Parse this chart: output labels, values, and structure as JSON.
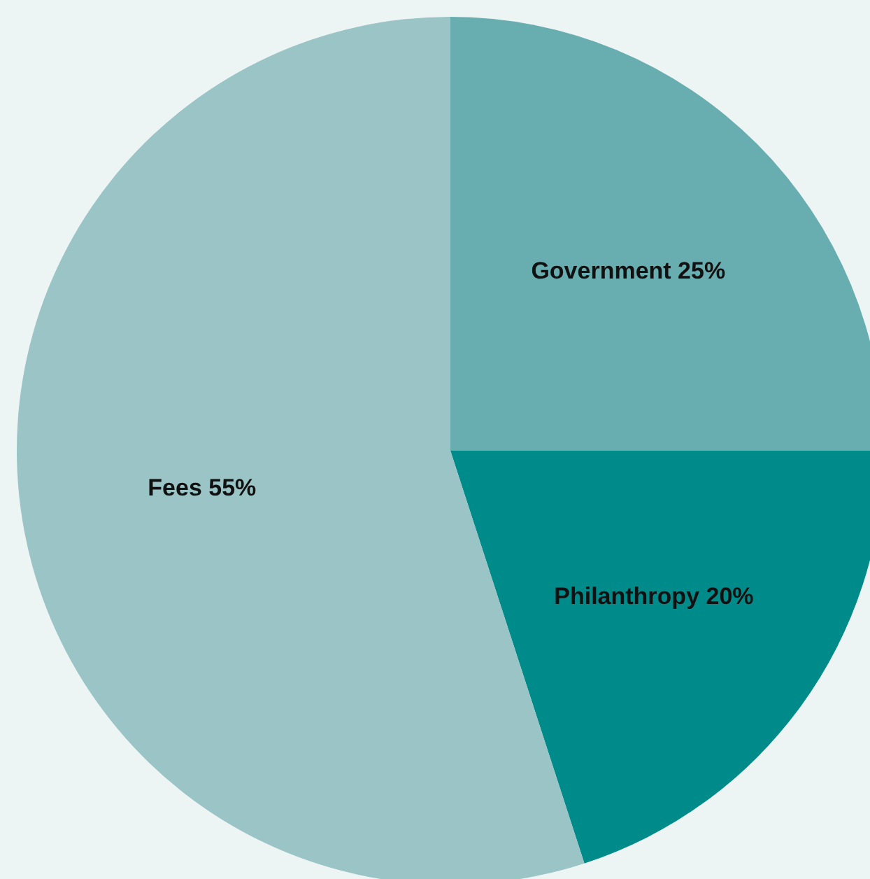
{
  "chart_data": {
    "type": "pie",
    "categories": [
      "Government",
      "Philanthropy",
      "Fees"
    ],
    "values": [
      25,
      20,
      55
    ],
    "colors": [
      "#68aeb0",
      "#008b8b",
      "#9ac4c5"
    ],
    "value_labels": [
      "25%",
      "20%",
      "55%"
    ]
  }
}
